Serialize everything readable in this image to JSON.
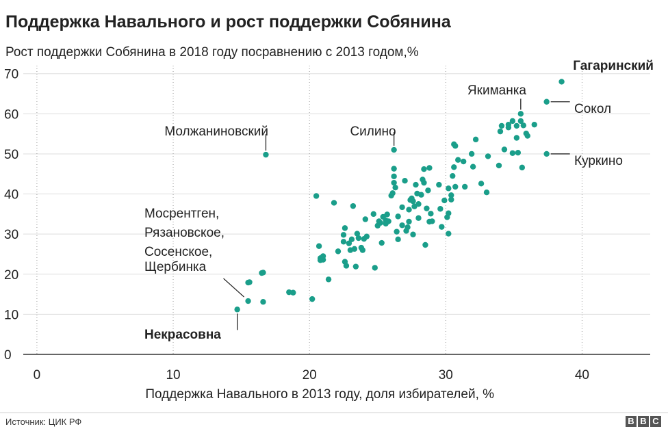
{
  "header": {
    "title": "Поддержка Навального и рост поддержки Собянина",
    "subtitle": "Рост поддержки Собянина в 2018 году посравнению с 2013 годом,%"
  },
  "footer": {
    "source": "Источник: ЦИК РФ",
    "logo_letters": [
      "B",
      "B",
      "C"
    ]
  },
  "colors": {
    "dot": "#1a9e8a",
    "grid": "#dddddd",
    "axis": "#333333",
    "text": "#222222"
  },
  "chart_data": {
    "type": "scatter",
    "title": "Поддержка Навального и рост поддержки Собянина",
    "xlabel": "Поддержка Навального в 2013 году, доля избирателей, %",
    "ylabel": "Рост поддержки Собянина в 2018 году посравнению с 2013 годом,%",
    "xlim": [
      -1,
      45
    ],
    "ylim": [
      0,
      72
    ],
    "x_ticks": [
      0,
      10,
      20,
      30,
      40
    ],
    "y_ticks": [
      0,
      10,
      20,
      30,
      40,
      50,
      60,
      70
    ],
    "grid": {
      "x": "dotted",
      "y": "solid"
    },
    "annotations": [
      {
        "text": "Гагаринский",
        "bold": true,
        "x": 38.5,
        "y": 68
      },
      {
        "text": "Якиманка",
        "bold": false,
        "x": 35.5,
        "y": 60
      },
      {
        "text": "Сокол",
        "bold": false,
        "x": 37.4,
        "y": 63
      },
      {
        "text": "Куркино",
        "bold": false,
        "x": 37.4,
        "y": 50
      },
      {
        "text": "Молжаниновский",
        "bold": false,
        "x": 16.8,
        "y": 49.8
      },
      {
        "text": "Силино",
        "bold": false,
        "x": 26.2,
        "y": 51
      },
      {
        "text": "Мосрентген,",
        "bold": false,
        "x": 15.5,
        "y": 13.3
      },
      {
        "text": "Рязановское,",
        "bold": false,
        "x": 15.5,
        "y": 13.3
      },
      {
        "text": "Сосенское,",
        "bold": false,
        "x": 15.5,
        "y": 13.3
      },
      {
        "text": "Щербинка",
        "bold": false,
        "x": 15.5,
        "y": 13.3
      },
      {
        "text": "Некрасовна",
        "bold": true,
        "x": 14.7,
        "y": 11.2
      }
    ],
    "points": [
      [
        14.7,
        11.2
      ],
      [
        15.5,
        13.3
      ],
      [
        16.6,
        13.1
      ],
      [
        15.5,
        17.9
      ],
      [
        15.6,
        18.0
      ],
      [
        16.5,
        20.3
      ],
      [
        16.6,
        20.4
      ],
      [
        18.5,
        15.5
      ],
      [
        18.8,
        15.4
      ],
      [
        20.2,
        13.8
      ],
      [
        16.8,
        49.8
      ],
      [
        20.5,
        39.5
      ],
      [
        20.7,
        27.0
      ],
      [
        20.8,
        24.0
      ],
      [
        20.8,
        23.5
      ],
      [
        21.0,
        24.5
      ],
      [
        21.0,
        23.6
      ],
      [
        21.4,
        18.7
      ],
      [
        21.8,
        37.8
      ],
      [
        22.1,
        25.7
      ],
      [
        22.5,
        29.8
      ],
      [
        22.5,
        28.1
      ],
      [
        22.6,
        31.5
      ],
      [
        22.7,
        22.1
      ],
      [
        22.6,
        23.1
      ],
      [
        22.9,
        27.7
      ],
      [
        23.0,
        26.0
      ],
      [
        23.1,
        28.7
      ],
      [
        23.2,
        37.0
      ],
      [
        23.3,
        26.3
      ],
      [
        23.4,
        21.9
      ],
      [
        23.5,
        30.1
      ],
      [
        23.6,
        29.0
      ],
      [
        23.8,
        26.6
      ],
      [
        23.9,
        26.0
      ],
      [
        24.0,
        28.8
      ],
      [
        24.1,
        33.7
      ],
      [
        24.2,
        29.4
      ],
      [
        24.7,
        35.0
      ],
      [
        24.8,
        21.6
      ],
      [
        25.0,
        32.1
      ],
      [
        25.1,
        33.2
      ],
      [
        25.2,
        32.8
      ],
      [
        25.3,
        27.8
      ],
      [
        25.4,
        34.3
      ],
      [
        25.6,
        32.6
      ],
      [
        25.6,
        33.4
      ],
      [
        25.7,
        34.9
      ],
      [
        25.8,
        33.2
      ],
      [
        26.0,
        39.6
      ],
      [
        26.1,
        40.2
      ],
      [
        26.2,
        51.0
      ],
      [
        26.2,
        46.3
      ],
      [
        26.2,
        44.4
      ],
      [
        26.2,
        42.8
      ],
      [
        26.3,
        41.6
      ],
      [
        26.4,
        30.6
      ],
      [
        26.5,
        34.4
      ],
      [
        26.5,
        28.7
      ],
      [
        26.8,
        36.7
      ],
      [
        26.8,
        32.2
      ],
      [
        27.0,
        43.3
      ],
      [
        27.1,
        30.8
      ],
      [
        27.2,
        31.7
      ],
      [
        27.3,
        33.1
      ],
      [
        27.3,
        36.1
      ],
      [
        27.4,
        38.5
      ],
      [
        27.5,
        38.9
      ],
      [
        27.6,
        29.9
      ],
      [
        27.6,
        38.2
      ],
      [
        27.7,
        36.9
      ],
      [
        27.8,
        42.3
      ],
      [
        27.9,
        40.1
      ],
      [
        28.0,
        34.0
      ],
      [
        28.0,
        37.5
      ],
      [
        28.2,
        39.8
      ],
      [
        28.3,
        43.6
      ],
      [
        28.4,
        42.8
      ],
      [
        28.4,
        46.2
      ],
      [
        28.5,
        27.3
      ],
      [
        28.6,
        36.4
      ],
      [
        28.7,
        40.9
      ],
      [
        28.8,
        33.1
      ],
      [
        28.9,
        35.1
      ],
      [
        28.8,
        46.5
      ],
      [
        29.0,
        33.2
      ],
      [
        29.5,
        42.3
      ],
      [
        29.6,
        36.3
      ],
      [
        29.7,
        31.8
      ],
      [
        29.9,
        38.4
      ],
      [
        30.1,
        34.2
      ],
      [
        30.2,
        35.2
      ],
      [
        30.2,
        41.4
      ],
      [
        30.2,
        30.1
      ],
      [
        30.4,
        38.6
      ],
      [
        30.4,
        39.7
      ],
      [
        30.5,
        44.5
      ],
      [
        30.6,
        46.7
      ],
      [
        30.6,
        52.4
      ],
      [
        30.7,
        52.0
      ],
      [
        30.7,
        41.8
      ],
      [
        30.9,
        48.5
      ],
      [
        31.3,
        48.1
      ],
      [
        31.4,
        41.8
      ],
      [
        31.9,
        50.0
      ],
      [
        32.0,
        46.8
      ],
      [
        32.2,
        53.6
      ],
      [
        32.6,
        42.6
      ],
      [
        33.0,
        40.4
      ],
      [
        33.1,
        49.4
      ],
      [
        33.9,
        47.1
      ],
      [
        34.0,
        55.6
      ],
      [
        34.1,
        57.0
      ],
      [
        34.3,
        51.1
      ],
      [
        34.6,
        57.3
      ],
      [
        34.6,
        56.6
      ],
      [
        34.9,
        58.2
      ],
      [
        34.9,
        50.2
      ],
      [
        35.2,
        57.0
      ],
      [
        35.2,
        54.0
      ],
      [
        35.3,
        50.3
      ],
      [
        35.5,
        60.0
      ],
      [
        35.5,
        58.2
      ],
      [
        35.6,
        46.6
      ],
      [
        35.7,
        57.1
      ],
      [
        35.9,
        55.1
      ],
      [
        36.0,
        54.5
      ],
      [
        36.5,
        57.3
      ],
      [
        37.4,
        63.0
      ],
      [
        37.4,
        50.0
      ],
      [
        38.5,
        68.0
      ]
    ]
  }
}
